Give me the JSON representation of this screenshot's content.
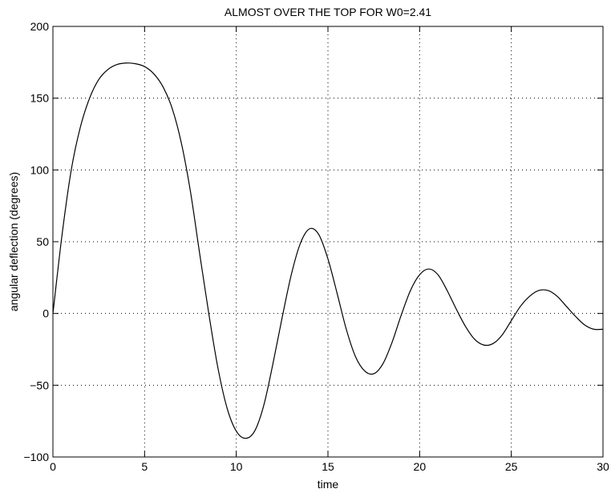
{
  "chart_data": {
    "type": "line",
    "title": "ALMOST OVER THE TOP FOR W0=2.41",
    "xlabel": "time",
    "ylabel": "angular deflection (degrees)",
    "xlim": [
      0,
      30
    ],
    "ylim": [
      -100,
      200
    ],
    "xticks": [
      0,
      5,
      10,
      15,
      20,
      25,
      30
    ],
    "yticks": [
      -100,
      -50,
      0,
      50,
      100,
      150,
      200
    ],
    "xtick_labels": [
      "0",
      "5",
      "10",
      "15",
      "20",
      "25",
      "30"
    ],
    "ytick_labels": [
      "−100",
      "−50",
      "0",
      "50",
      "100",
      "150",
      "200"
    ],
    "grid": true,
    "series": [
      {
        "color": "#000000",
        "points": [
          [
            0,
            0
          ],
          [
            0.5,
            55
          ],
          [
            1,
            100
          ],
          [
            1.5,
            130
          ],
          [
            2,
            150
          ],
          [
            2.5,
            163
          ],
          [
            3,
            170
          ],
          [
            3.5,
            173.5
          ],
          [
            4,
            174.5
          ],
          [
            4.5,
            174
          ],
          [
            5,
            172
          ],
          [
            5.5,
            167
          ],
          [
            6,
            158
          ],
          [
            6.5,
            143
          ],
          [
            7,
            119
          ],
          [
            7.5,
            85
          ],
          [
            8,
            42
          ],
          [
            8.5,
            0
          ],
          [
            9,
            -38
          ],
          [
            9.5,
            -66
          ],
          [
            10,
            -82
          ],
          [
            10.5,
            -87
          ],
          [
            11,
            -82
          ],
          [
            11.5,
            -64
          ],
          [
            12,
            -35
          ],
          [
            12.5,
            -3
          ],
          [
            13,
            27
          ],
          [
            13.5,
            49
          ],
          [
            14,
            59
          ],
          [
            14.5,
            55
          ],
          [
            15,
            38
          ],
          [
            15.5,
            14
          ],
          [
            16,
            -11
          ],
          [
            16.5,
            -30
          ],
          [
            17,
            -40
          ],
          [
            17.5,
            -42
          ],
          [
            18,
            -35
          ],
          [
            18.5,
            -20
          ],
          [
            19,
            -1
          ],
          [
            19.5,
            16
          ],
          [
            20,
            27
          ],
          [
            20.5,
            31
          ],
          [
            21,
            27
          ],
          [
            21.5,
            16
          ],
          [
            22,
            3
          ],
          [
            22.5,
            -9
          ],
          [
            23,
            -18
          ],
          [
            23.5,
            -22
          ],
          [
            24,
            -21
          ],
          [
            24.5,
            -15
          ],
          [
            25,
            -5
          ],
          [
            25.5,
            5
          ],
          [
            26,
            12
          ],
          [
            26.5,
            16
          ],
          [
            27,
            16
          ],
          [
            27.5,
            12
          ],
          [
            28,
            5
          ],
          [
            28.5,
            -2
          ],
          [
            29,
            -8
          ],
          [
            29.5,
            -11
          ],
          [
            30,
            -11
          ]
        ]
      }
    ]
  }
}
